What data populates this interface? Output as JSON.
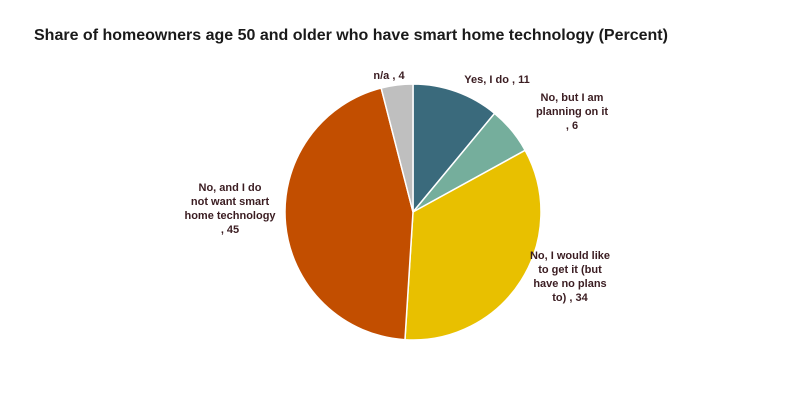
{
  "chart_data": {
    "type": "pie",
    "title": "Share of homeowners age 50 and older who have smart home technology (Percent)",
    "slices": [
      {
        "label": "Yes, I do",
        "value": 11,
        "color": "#3a6a7c"
      },
      {
        "label": "No, but I am planning on it",
        "value": 6,
        "color": "#75ae9c"
      },
      {
        "label": "No, I would like to get it (but have no plans to)",
        "value": 34,
        "color": "#e8c000"
      },
      {
        "label": "No, and I do not want smart home technology",
        "value": 45,
        "color": "#c24e00"
      },
      {
        "label": "n/a",
        "value": 4,
        "color": "#bfbfbf"
      }
    ],
    "slice_labels": [
      "Yes, I do , 11",
      "No, but I am planning on it , 6",
      "No, I would like to get it (but have no plans to) , 34",
      "No, and I do not want smart home technology , 45",
      "n/a , 4"
    ]
  }
}
